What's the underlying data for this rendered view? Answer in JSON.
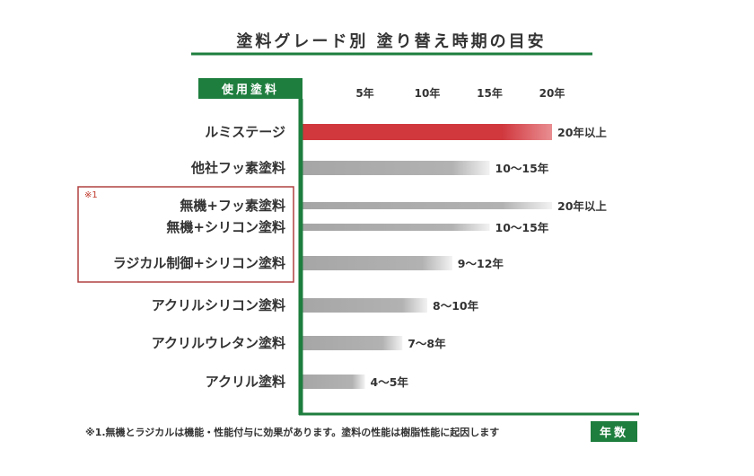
{
  "chart_data": {
    "type": "bar",
    "orientation": "horizontal",
    "title": "塗料グレード別 塗り替え時期の目安",
    "category_header": "使用塗料",
    "x_axis_label": "年数",
    "ticks": [
      "5年",
      "10年",
      "15年",
      "20年"
    ],
    "xlim": [
      0,
      20
    ],
    "bars": [
      {
        "label": "ルミステージ",
        "value": 20,
        "value_label": "20年以上",
        "highlight": true
      },
      {
        "label": "他社フッ素塗料",
        "value": 15,
        "value_label": "10〜15年",
        "highlight": false
      },
      {
        "label": "無機+フッ素塗料",
        "value": 20,
        "value_label": "20年以上",
        "highlight": false,
        "thin": true
      },
      {
        "label": "無機+シリコン塗料",
        "value": 15,
        "value_label": "10〜15年",
        "highlight": false,
        "thin": true
      },
      {
        "label": "ラジカル制御+シリコン塗料",
        "value": 12,
        "value_label": "9〜12年",
        "highlight": false
      },
      {
        "label": "アクリルシリコン塗料",
        "value": 10,
        "value_label": "8〜10年",
        "highlight": false
      },
      {
        "label": "アクリルウレタン塗料",
        "value": 8,
        "value_label": "7〜8年",
        "highlight": false
      },
      {
        "label": "アクリル塗料",
        "value": 5,
        "value_label": "4〜5年",
        "highlight": false
      }
    ],
    "group_note": "※1",
    "footnote": "※1.無機とラジカルは機能・性能付与に効果があります。塗料の性能は樹脂性能に起因します",
    "colors": {
      "accent_green": "#1e7e3e",
      "highlight_red": "#d0383e",
      "bar_gray": "#a6a6a6",
      "box_red": "#b04040"
    }
  }
}
